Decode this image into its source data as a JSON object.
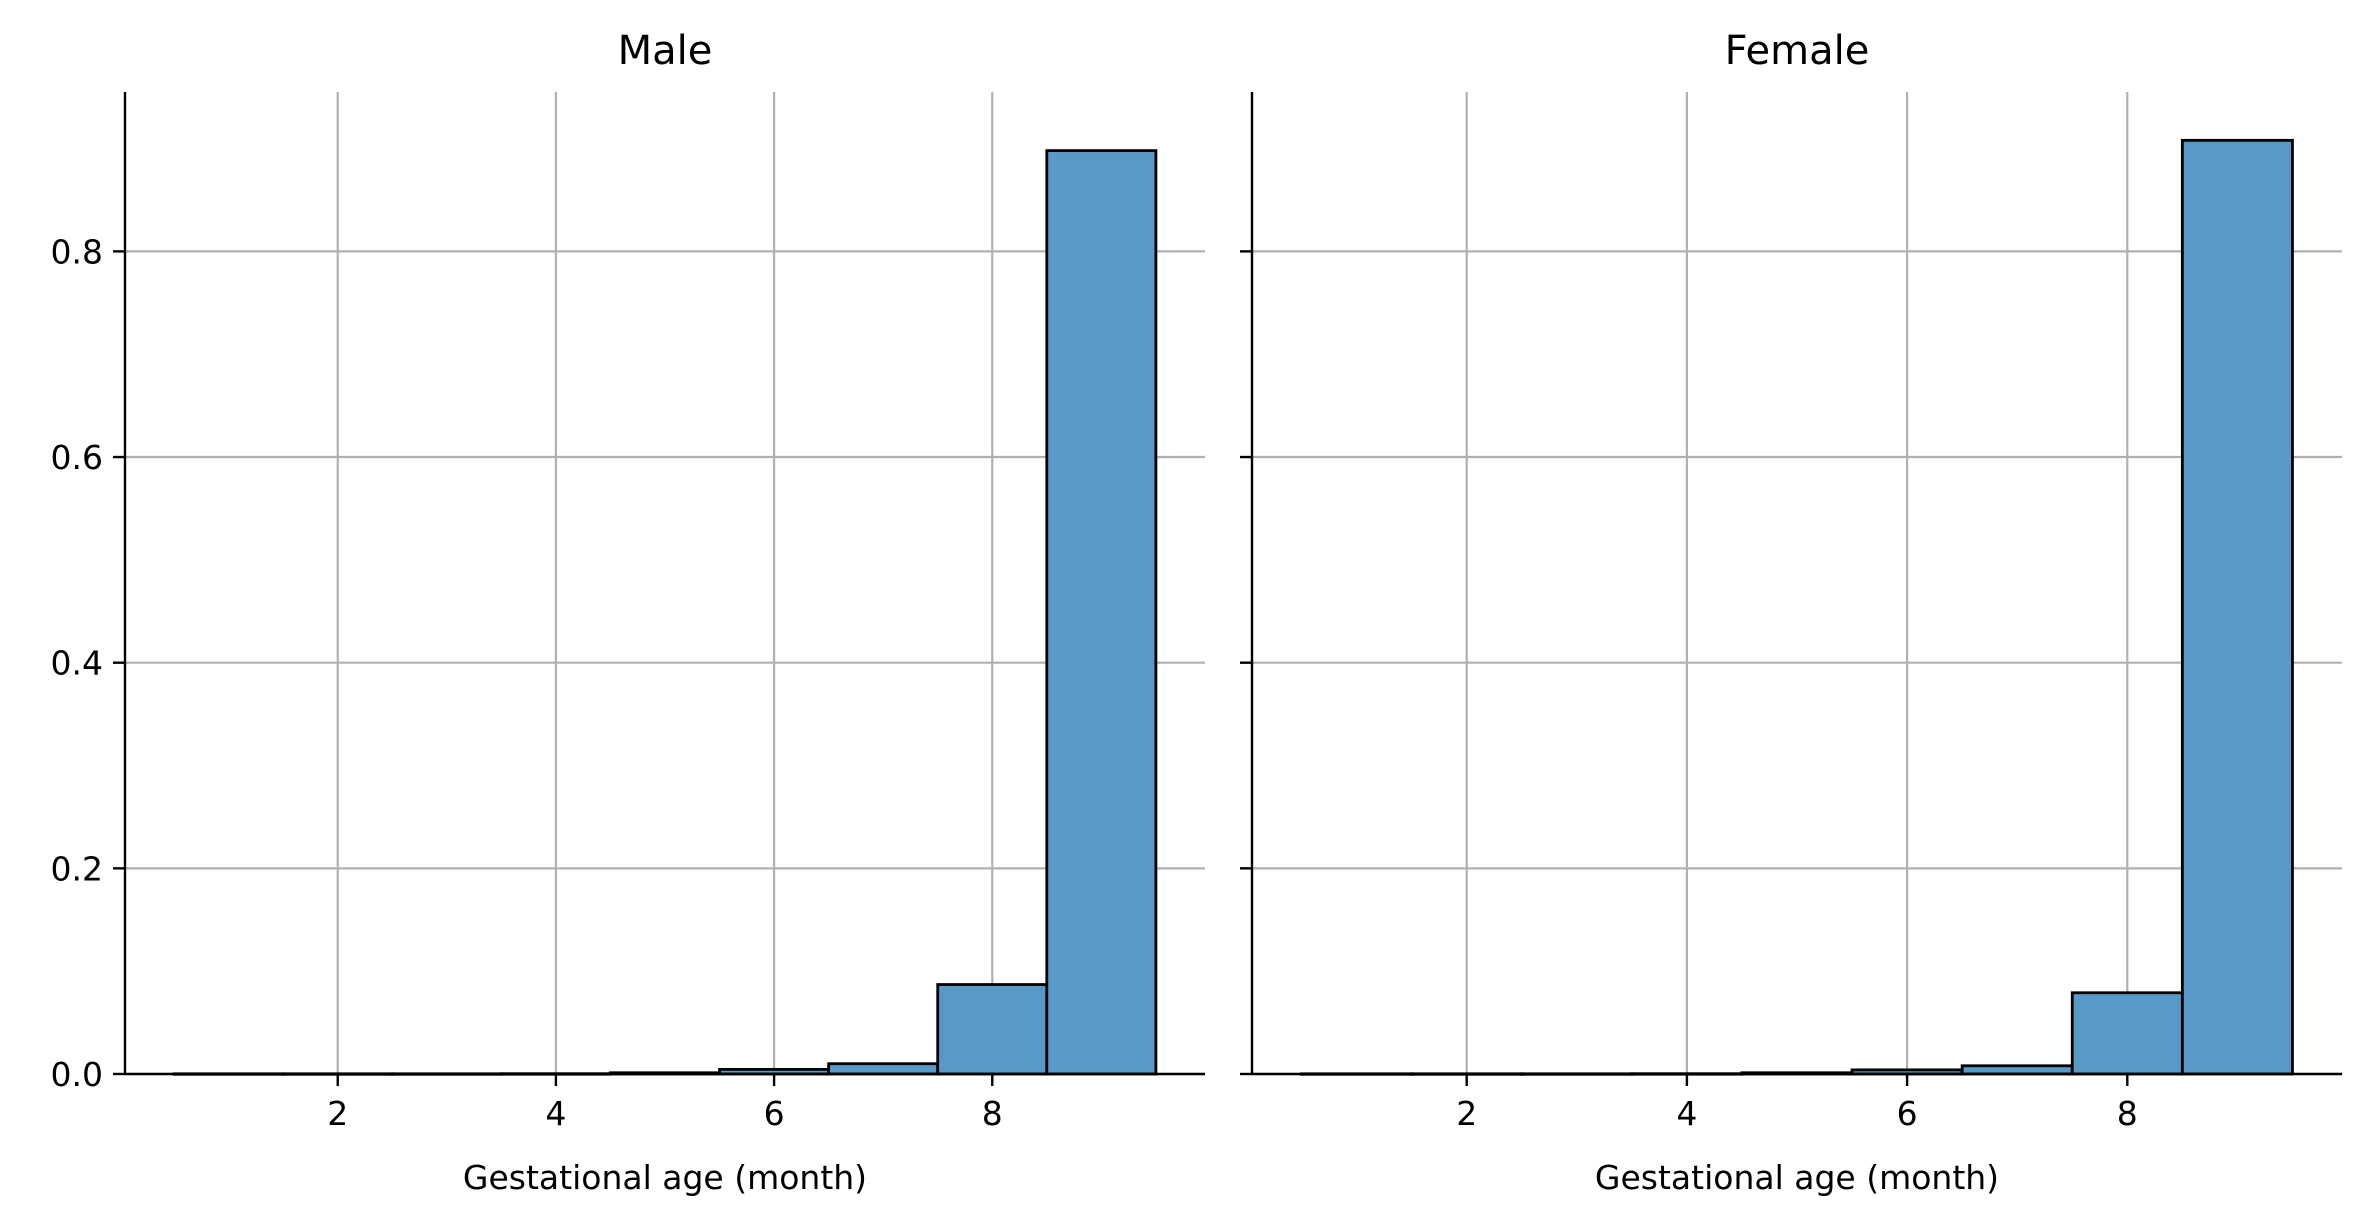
{
  "chart_data": [
    {
      "type": "bar",
      "title": "Male",
      "xlabel": "Gestational age (month)",
      "ylabel": "",
      "xlim": [
        0.05,
        9.95
      ],
      "ylim": [
        0,
        0.955
      ],
      "xticks": [
        2,
        4,
        6,
        8
      ],
      "xtick_labels": [
        "2",
        "4",
        "6",
        "8"
      ],
      "yticks": [
        0.0,
        0.2,
        0.4,
        0.6,
        0.8
      ],
      "ytick_labels": [
        "0.0",
        "0.2",
        "0.4",
        "0.6",
        "0.8"
      ],
      "grid": true,
      "bin_edges": [
        0.5,
        1.5,
        2.5,
        3.5,
        4.5,
        5.5,
        6.5,
        7.5,
        8.5,
        9.5
      ],
      "values": [
        0.0002,
        0.0002,
        0.0002,
        0.0003,
        0.0012,
        0.0045,
        0.01,
        0.087,
        0.898
      ],
      "color": "#5799c7"
    },
    {
      "type": "bar",
      "title": "Female",
      "xlabel": "Gestational age (month)",
      "ylabel": "",
      "xlim": [
        0.05,
        9.95
      ],
      "ylim": [
        0,
        0.955
      ],
      "xticks": [
        2,
        4,
        6,
        8
      ],
      "xtick_labels": [
        "2",
        "4",
        "6",
        "8"
      ],
      "yticks": [
        0.0,
        0.2,
        0.4,
        0.6,
        0.8
      ],
      "ytick_labels": [
        "",
        "",
        "",
        "",
        ""
      ],
      "grid": true,
      "bin_edges": [
        0.5,
        1.5,
        2.5,
        3.5,
        4.5,
        5.5,
        6.5,
        7.5,
        8.5,
        9.5
      ],
      "values": [
        0.0002,
        0.0002,
        0.0002,
        0.0003,
        0.0012,
        0.004,
        0.008,
        0.079,
        0.908
      ],
      "color": "#5799c7"
    }
  ]
}
